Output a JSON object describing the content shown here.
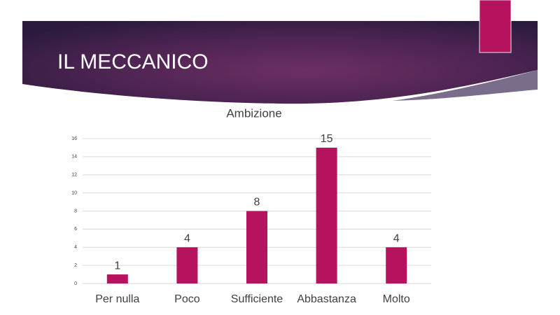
{
  "slide_title": "IL MECCANICO",
  "chart_data": {
    "type": "bar",
    "title": "Ambizione",
    "categories": [
      "Per nulla",
      "Poco",
      "Sufficiente",
      "Abbastanza",
      "Molto"
    ],
    "values": [
      1,
      4,
      8,
      15,
      4
    ],
    "color": "#b5135e",
    "ylim": [
      0,
      16
    ],
    "yticks": [
      0,
      2,
      4,
      6,
      8,
      10,
      12,
      14,
      16
    ],
    "grid": true
  }
}
